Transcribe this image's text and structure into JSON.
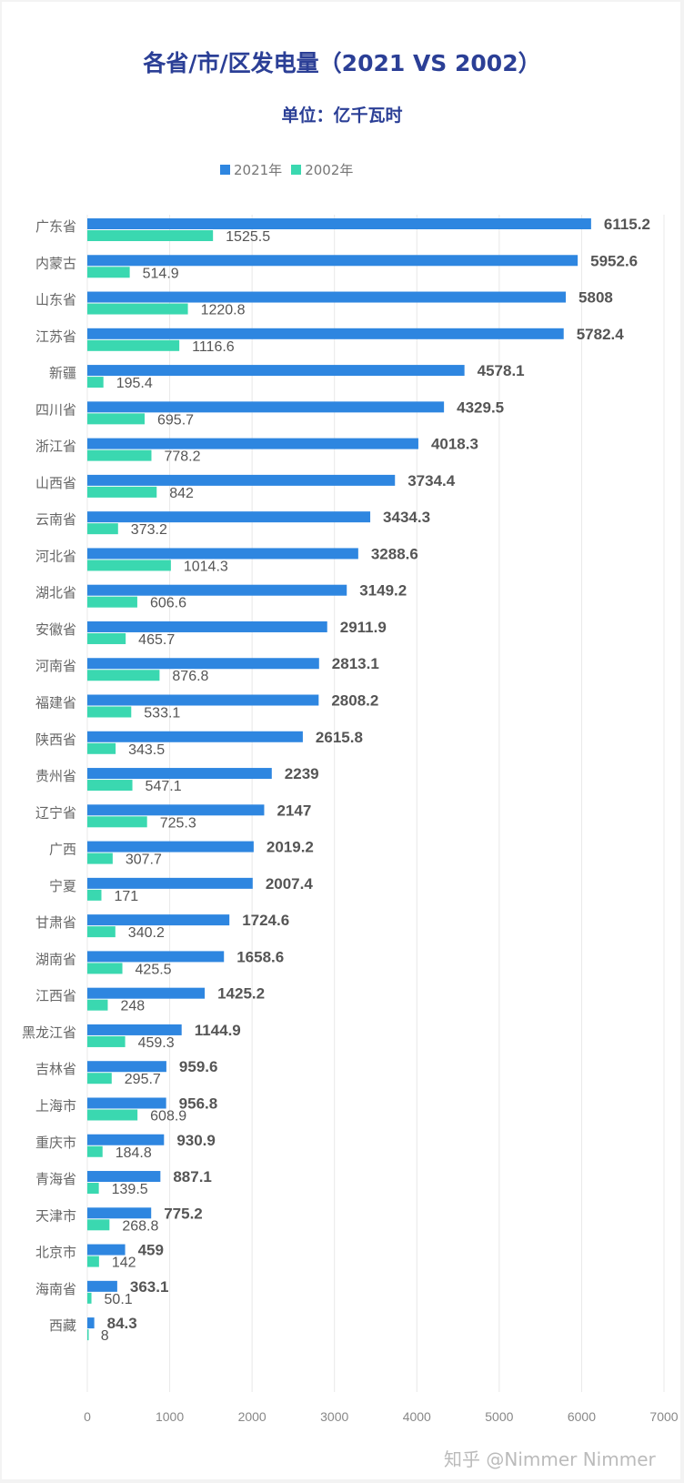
{
  "chart_data": {
    "type": "bar",
    "orientation": "horizontal",
    "title": "各省/市/区发电量（2021 VS 2002）",
    "subtitle": "单位：亿千瓦时",
    "categories": [
      "广东省",
      "内蒙古",
      "山东省",
      "江苏省",
      "新疆",
      "四川省",
      "浙江省",
      "山西省",
      "云南省",
      "河北省",
      "湖北省",
      "安徽省",
      "河南省",
      "福建省",
      "陕西省",
      "贵州省",
      "辽宁省",
      "广西",
      "宁夏",
      "甘肃省",
      "湖南省",
      "江西省",
      "黑龙江省",
      "吉林省",
      "上海市",
      "重庆市",
      "青海省",
      "天津市",
      "北京市",
      "海南省",
      "西藏"
    ],
    "series": [
      {
        "name": "2021年",
        "color": "#2e86e0",
        "values": [
          6115.2,
          5952.6,
          5808,
          5782.4,
          4578.1,
          4329.5,
          4018.3,
          3734.4,
          3434.3,
          3288.6,
          3149.2,
          2911.9,
          2813.1,
          2808.2,
          2615.8,
          2239,
          2147,
          2019.2,
          2007.4,
          1724.6,
          1658.6,
          1425.2,
          1144.9,
          959.6,
          956.8,
          930.9,
          887.1,
          775.2,
          459,
          363.1,
          84.3
        ]
      },
      {
        "name": "2002年",
        "color": "#3ad8b0",
        "values": [
          1525.5,
          514.9,
          1220.8,
          1116.6,
          195.4,
          695.7,
          778.2,
          842,
          373.2,
          1014.3,
          606.6,
          465.7,
          876.8,
          533.1,
          343.5,
          547.1,
          725.3,
          307.7,
          171,
          340.2,
          425.5,
          248,
          459.3,
          295.7,
          608.9,
          184.8,
          139.5,
          268.8,
          142,
          50.1,
          8
        ]
      }
    ],
    "xlim": [
      0,
      7000
    ],
    "xticks": [
      0,
      1000,
      2000,
      3000,
      4000,
      5000,
      6000,
      7000
    ],
    "grid": true,
    "legend_position": "top"
  },
  "watermark": "知乎 @Nimmer Nimmer"
}
